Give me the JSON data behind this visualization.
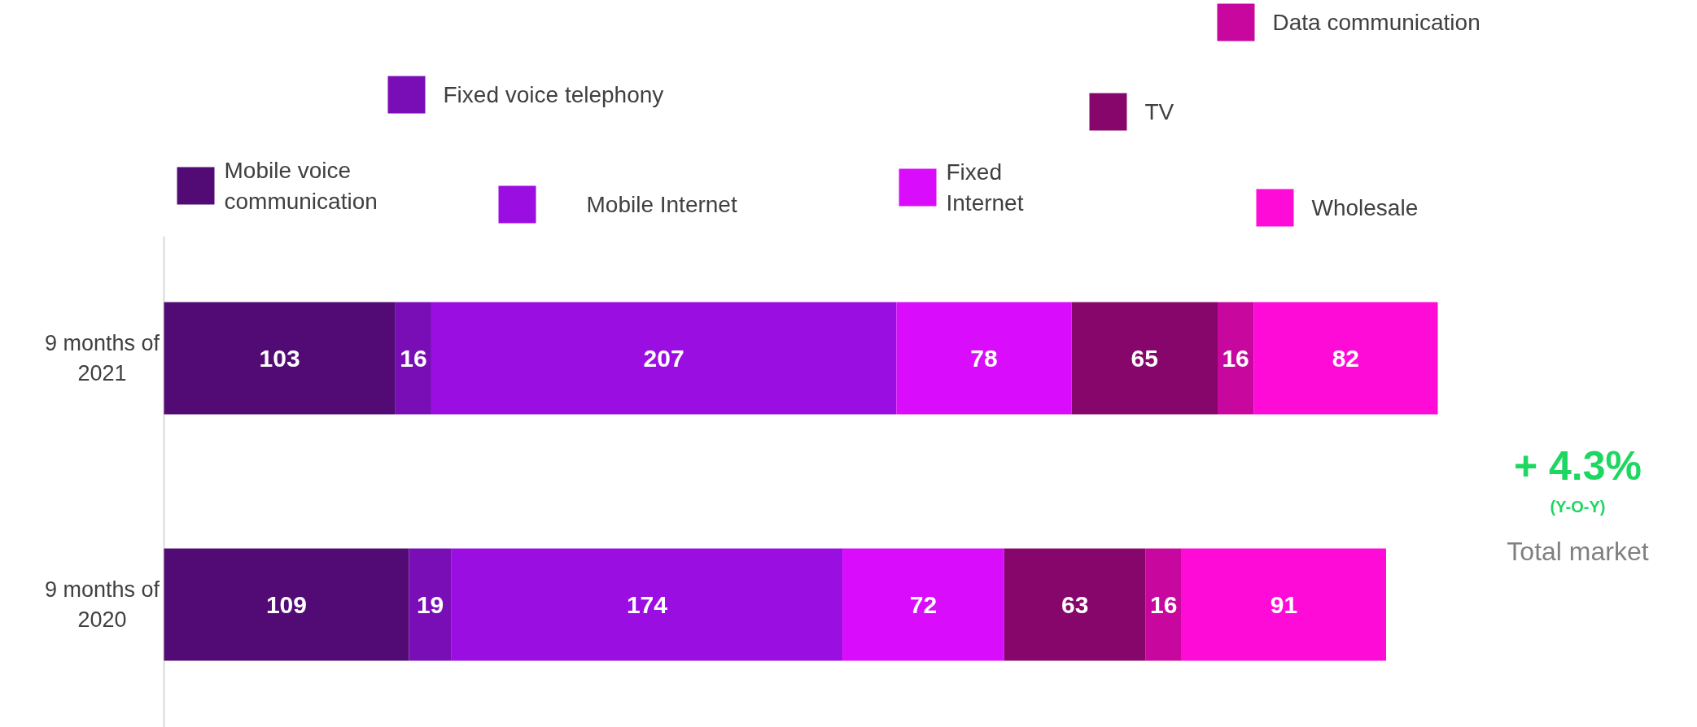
{
  "chart_data": {
    "type": "bar",
    "orientation": "horizontal",
    "stacked": true,
    "data_labels": true,
    "legend": "top",
    "grid": false,
    "categories": [
      "9 months of 2021",
      "9 months of 2020"
    ],
    "series": [
      {
        "name": "Mobile voice communication",
        "color": "#520a75",
        "values": [
          103,
          109
        ]
      },
      {
        "name": "Fixed voice telephony",
        "color": "#7a0eb6",
        "values": [
          16,
          19
        ]
      },
      {
        "name": "Mobile Internet",
        "color": "#9a0ee2",
        "values": [
          207,
          174
        ]
      },
      {
        "name": "Fixed Internet",
        "color": "#d90cfc",
        "values": [
          78,
          72
        ]
      },
      {
        "name": "TV",
        "color": "#86066c",
        "values": [
          65,
          63
        ]
      },
      {
        "name": "Data communication",
        "color": "#c8079f",
        "values": [
          16,
          16
        ]
      },
      {
        "name": "Wholesale",
        "color": "#ff0bd8",
        "values": [
          82,
          91
        ]
      }
    ],
    "annotations": [
      "+ 4.3%",
      "(Y-O-Y)",
      "Total market"
    ]
  }
}
